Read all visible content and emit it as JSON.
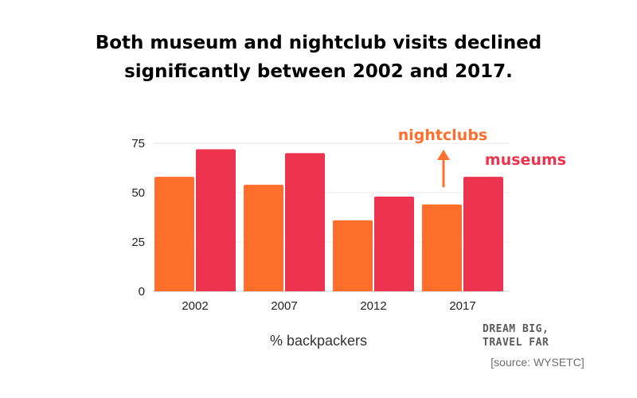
{
  "title_line1": "Both museum and nightclub visits declined",
  "title_line2": "significantly between 2002 and 2017.",
  "brand": {
    "line1": "DREAM BIG,",
    "line2": "TRAVEL FAR"
  },
  "source": "[source: WYSETC]",
  "colors": {
    "nightclubs": "#ff6f2c",
    "museums": "#ee334e",
    "grid": "#e8e8e8",
    "axis_text": "#222222"
  },
  "chart_data": {
    "type": "bar",
    "title": "Both museum and nightclub visits declined significantly between 2002 and 2017.",
    "xlabel": "% backpackers",
    "ylabel": "",
    "categories": [
      "2002",
      "2007",
      "2012",
      "2017"
    ],
    "ylim": [
      0,
      75
    ],
    "yticks": [
      0,
      25,
      50,
      75
    ],
    "grid": true,
    "series": [
      {
        "name": "nightclubs",
        "values": [
          58,
          54,
          36,
          44
        ]
      },
      {
        "name": "museums",
        "values": [
          72,
          70,
          48,
          58
        ]
      }
    ],
    "annotations": [
      {
        "text": "nightclubs",
        "series": "nightclubs"
      },
      {
        "text": "museums",
        "series": "museums"
      }
    ]
  }
}
